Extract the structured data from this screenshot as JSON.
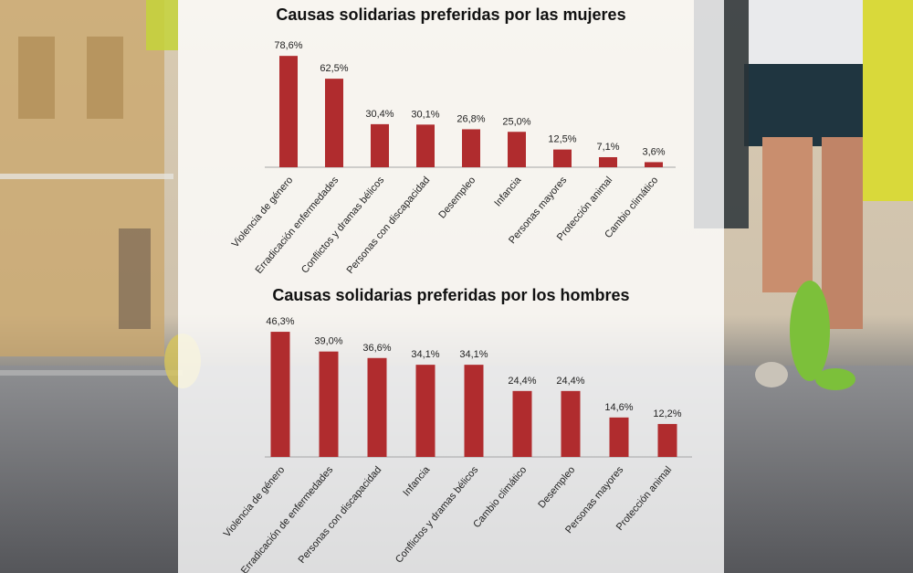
{
  "chart_data": [
    {
      "type": "bar",
      "title": "Causas solidarias preferidas por las mujeres",
      "categories": [
        "Violencia de género",
        "Erradicación enfermedades",
        "Conflictos y dramas bélicos",
        "Personas con discapacidad",
        "Desempleo",
        "Infancia",
        "Personas mayores",
        "Protección animal",
        "Cambio climático"
      ],
      "values": [
        78.6,
        62.5,
        30.4,
        30.1,
        26.8,
        25.0,
        12.5,
        7.1,
        3.6
      ],
      "value_labels": [
        "78,6%",
        "62,5%",
        "30,4%",
        "30,1%",
        "26,8%",
        "25,0%",
        "12,5%",
        "7,1%",
        "3,6%"
      ],
      "ylim": [
        0,
        80
      ],
      "grid": false,
      "bar_color": "#b02c2e"
    },
    {
      "type": "bar",
      "title": "Causas solidarias preferidas por los hombres",
      "categories": [
        "Violencia de género",
        "Erradicación de enfermedades",
        "Personas con discapacidad",
        "Infancia",
        "Conflictos y dramas bélicos",
        "Cambio climático",
        "Desempleo",
        "Personas mayores",
        "Protección animal"
      ],
      "values": [
        46.3,
        39.0,
        36.6,
        34.1,
        34.1,
        24.4,
        24.4,
        14.6,
        12.2
      ],
      "value_labels": [
        "46,3%",
        "39,0%",
        "36,6%",
        "34,1%",
        "34,1%",
        "24,4%",
        "24,4%",
        "14,6%",
        "12,2%"
      ],
      "ylim": [
        0,
        47
      ],
      "grid": false,
      "bar_color": "#b02c2e"
    }
  ]
}
